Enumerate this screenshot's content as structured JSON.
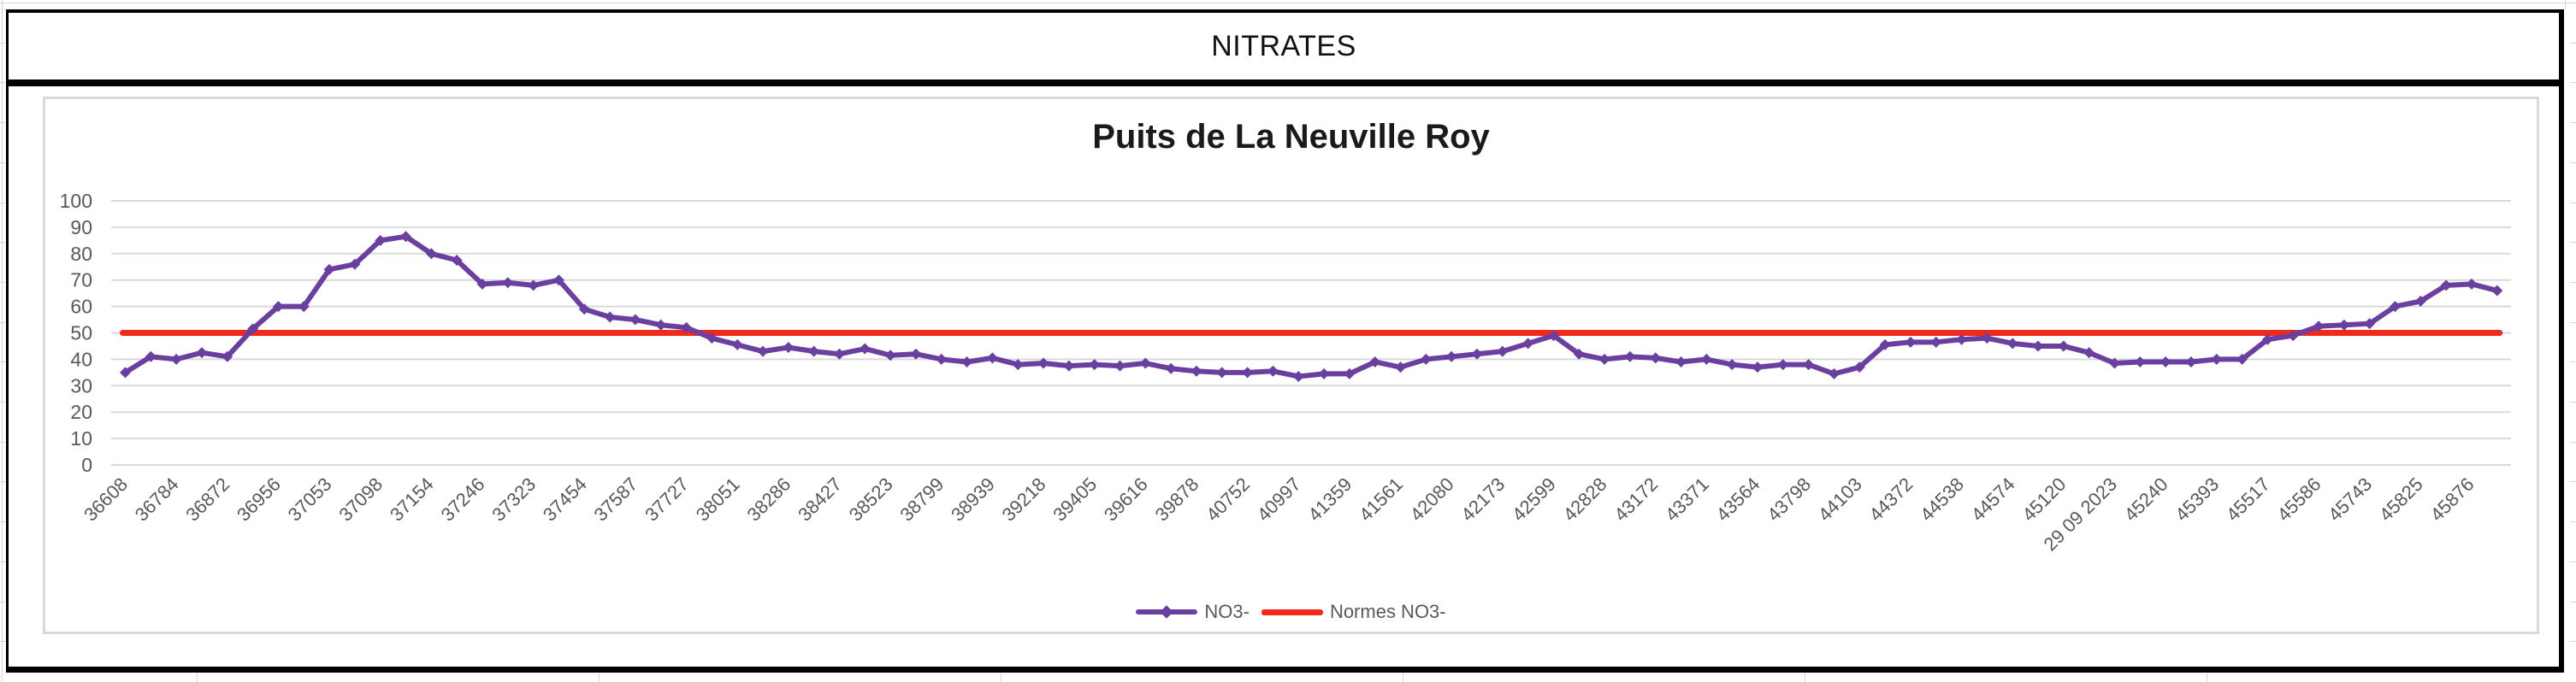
{
  "header": {
    "title": "NITRATES"
  },
  "chart_data": {
    "type": "line",
    "title": "Puits de La Neuville Roy",
    "x_labels": [
      "36608",
      "36784",
      "36872",
      "36956",
      "37053",
      "37098",
      "37154",
      "37246",
      "37323",
      "37454",
      "37587",
      "37727",
      "38051",
      "38286",
      "38427",
      "38523",
      "38799",
      "38939",
      "39218",
      "39405",
      "39616",
      "39878",
      "40752",
      "40997",
      "41359",
      "41561",
      "42080",
      "42173",
      "42599",
      "42828",
      "43172",
      "43371",
      "43564",
      "43798",
      "44103",
      "44372",
      "44538",
      "44574",
      "45120",
      "29 09 2023",
      "45240",
      "45393",
      "45517",
      "45586",
      "45743",
      "45825",
      "45876"
    ],
    "label_interval": 2,
    "series": [
      {
        "name": "NO3-",
        "color": "#6A3FA0",
        "marker": "diamond",
        "values": [
          35,
          41,
          40,
          42.5,
          41,
          51.5,
          60,
          60,
          74,
          76,
          85,
          86.5,
          80,
          77.5,
          68.5,
          69,
          68,
          70,
          59,
          56,
          55,
          53,
          52,
          48,
          45.5,
          43,
          44.5,
          43,
          42,
          44,
          41.5,
          42,
          40,
          39,
          40.5,
          38,
          38.5,
          37.5,
          38,
          37.5,
          38.5,
          36.5,
          35.5,
          35,
          35,
          35.5,
          33.5,
          34.5,
          34.5,
          39,
          37,
          40,
          41,
          42,
          43,
          46,
          49,
          42,
          40,
          41,
          40.5,
          39,
          40,
          38,
          37,
          38,
          38,
          34.5,
          37,
          45.5,
          46.5,
          46.5,
          47.5,
          48,
          46,
          45,
          45,
          42.5,
          38.5,
          39,
          39,
          39,
          40,
          40,
          47.5,
          49,
          52.5,
          53,
          53.5,
          60,
          62,
          68,
          68.5,
          66
        ]
      },
      {
        "name": "Normes NO3-",
        "color": "#EF2A1C",
        "type": "constant",
        "value": 50
      }
    ],
    "ylim": [
      0,
      100
    ],
    "yticks": [
      0,
      10,
      20,
      30,
      40,
      50,
      60,
      70,
      80,
      90,
      100
    ],
    "grid": true,
    "grid_color": "#D9D9D9",
    "axis_text_color": "#595959",
    "legend_position": "bottom"
  }
}
